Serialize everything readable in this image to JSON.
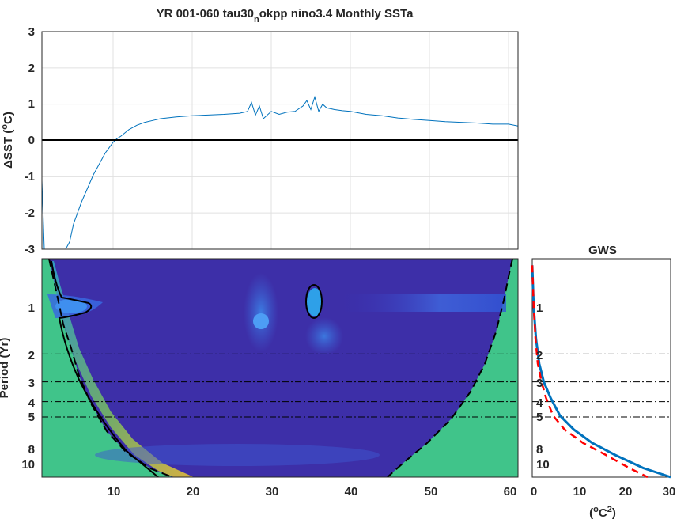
{
  "chart_data": [
    {
      "type": "line",
      "title": "YR 001-060 tau30",
      "title_sub": "n",
      "title_rest": "okpp nino3.4 Monthly SSTa",
      "ylabel": "ΔSST (",
      "ylabel_sup": "o",
      "ylabel_end": "C)",
      "xlim": [
        1,
        61.2
      ],
      "ylim": [
        -3,
        3
      ],
      "y_ticks": [
        "3",
        "2",
        "1",
        "0",
        "-1",
        "-2",
        "-3"
      ],
      "grid": true,
      "line_color": "#0072BD",
      "series": [
        {
          "x": [
            1.0,
            1.3,
            2.0,
            3.0,
            4.0,
            4.5,
            5.0,
            5.5,
            6.0,
            6.5,
            7.0,
            7.5,
            8.0,
            8.5,
            9.0,
            9.5,
            10.0,
            10.5,
            11.0,
            12.0,
            13.0,
            14.0,
            15.0,
            16.0,
            18.0,
            20.0,
            22.0,
            24.0,
            26.0,
            27.0,
            27.5,
            28.0,
            28.5,
            29.0,
            30.0,
            31.0,
            32.0,
            33.0,
            34.0,
            34.5,
            35.0,
            35.5,
            36.0,
            36.5,
            37.0,
            38.0,
            39.0,
            40.0,
            42.0,
            44.0,
            46.0,
            48.0,
            50.0,
            52.0,
            54.0,
            56.0,
            58.0,
            60.0,
            61.2
          ],
          "y": [
            -1.1,
            -3.0,
            -3.0,
            -3.0,
            -3.0,
            -2.8,
            -2.3,
            -2.0,
            -1.7,
            -1.45,
            -1.2,
            -0.95,
            -0.75,
            -0.55,
            -0.35,
            -0.2,
            -0.05,
            0.05,
            0.12,
            0.3,
            0.42,
            0.5,
            0.55,
            0.6,
            0.65,
            0.68,
            0.7,
            0.72,
            0.75,
            0.8,
            1.05,
            0.7,
            0.95,
            0.6,
            0.8,
            0.72,
            0.78,
            0.8,
            0.95,
            1.1,
            0.85,
            1.2,
            0.8,
            1.0,
            0.9,
            0.85,
            0.82,
            0.8,
            0.72,
            0.68,
            0.62,
            0.58,
            0.55,
            0.52,
            0.5,
            0.48,
            0.45,
            0.45,
            0.4
          ]
        }
      ]
    },
    {
      "type": "heatmap",
      "ylabel": "Period (Yr)",
      "xlim": [
        1,
        61.2
      ],
      "x_ticks": [
        "10",
        "20",
        "30",
        "40",
        "50",
        "60"
      ],
      "y_scale": "log2",
      "ylim": [
        0.5,
        12
      ],
      "y_ticks": [
        "1",
        "2",
        "3",
        "4",
        "5",
        "8",
        "10"
      ],
      "ref_periods": [
        2,
        3,
        4,
        5
      ],
      "colormap": "parula"
    },
    {
      "type": "line",
      "title": "GWS",
      "xlabel": "(",
      "xlabel_sup": "o",
      "xlabel_mid": "C",
      "xlabel_sup2": "2",
      "xlabel_end": ")",
      "xlim": [
        0,
        30
      ],
      "x_ticks": [
        "0",
        "10",
        "20",
        "30"
      ],
      "y_scale": "log2",
      "ylim": [
        0.5,
        12
      ],
      "y_ticks": [
        "1",
        "2",
        "3",
        "4",
        "5",
        "8",
        "10"
      ],
      "series": [
        {
          "style": "solid",
          "color": "#0072BD",
          "x": [
            0,
            0.3,
            0.8,
            1.5,
            2.5,
            4,
            6,
            9,
            13,
            18,
            24,
            30
          ],
          "y": [
            0.55,
            1.0,
            1.6,
            2.3,
            3.0,
            3.8,
            4.9,
            6.0,
            7.3,
            8.7,
            10.5,
            12
          ]
        },
        {
          "style": "dashed",
          "color": "#FF0000",
          "x": [
            0,
            0.3,
            0.7,
            1.2,
            2.0,
            3.0,
            4.5,
            7,
            11,
            16,
            21,
            25
          ],
          "y": [
            0.55,
            1.0,
            1.6,
            2.3,
            3.0,
            3.8,
            4.9,
            6.0,
            7.3,
            8.7,
            10.5,
            12
          ]
        }
      ]
    }
  ]
}
